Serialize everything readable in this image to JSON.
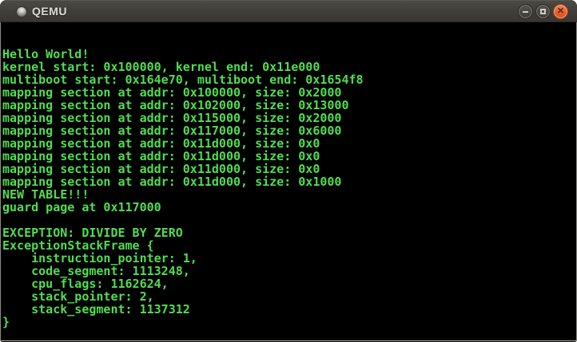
{
  "window": {
    "title": "QEMU"
  },
  "icons": {
    "window_icon": "qemu-window-orb-icon",
    "minimize": "minimize-icon",
    "maximize": "maximize-icon",
    "close": "close-icon",
    "close_glyph": "✕"
  },
  "colors": {
    "terminal_bg": "#000000",
    "terminal_text": "#52dd52",
    "titlebar_top": "#4b4a45",
    "titlebar_bottom": "#383732",
    "close_button": "#e2602f",
    "title_text": "#dfdbd2"
  },
  "console": {
    "lines": [
      "Hello World!",
      "kernel start: 0x100000, kernel end: 0x11e000",
      "multiboot start: 0x164e70, multiboot end: 0x1654f8",
      "mapping section at addr: 0x100000, size: 0x2000",
      "mapping section at addr: 0x102000, size: 0x13000",
      "mapping section at addr: 0x115000, size: 0x2000",
      "mapping section at addr: 0x117000, size: 0x6000",
      "mapping section at addr: 0x11d000, size: 0x0",
      "mapping section at addr: 0x11d000, size: 0x0",
      "mapping section at addr: 0x11d000, size: 0x0",
      "mapping section at addr: 0x11d000, size: 0x1000",
      "NEW TABLE!!!",
      "guard page at 0x117000",
      "",
      "EXCEPTION: DIVIDE BY ZERO",
      "ExceptionStackFrame {",
      "    instruction_pointer: 1,",
      "    code_segment: 1113248,",
      "    cpu_flags: 1162624,",
      "    stack_pointer: 2,",
      "    stack_segment: 1137312",
      "}"
    ]
  }
}
